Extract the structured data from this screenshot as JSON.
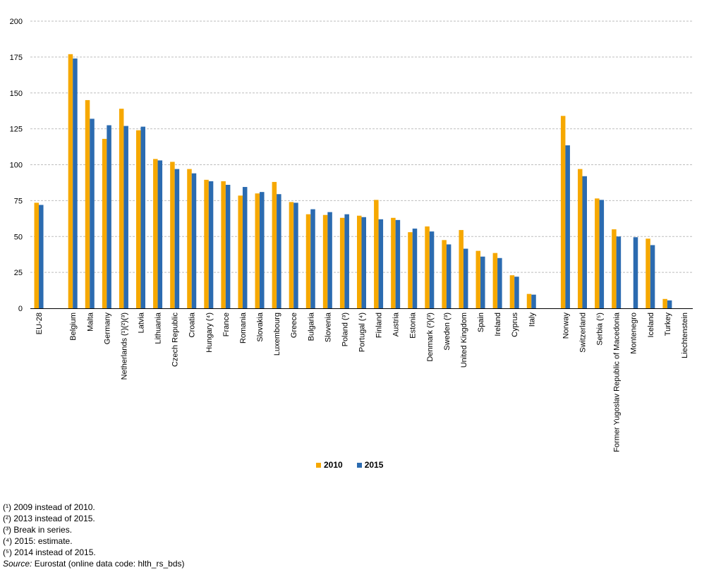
{
  "colors": {
    "series_2010": "#F6A800",
    "series_2015": "#2B6BB0",
    "grid": "#BEBEBE",
    "axis": "#000000"
  },
  "legend": {
    "label_2010": "2010",
    "label_2015": "2015"
  },
  "chart_data": {
    "type": "bar",
    "title": "",
    "xlabel": "",
    "ylabel": "",
    "ylim": [
      0,
      200
    ],
    "yticks": [
      0,
      25,
      50,
      75,
      100,
      125,
      150,
      175,
      200
    ],
    "grid": true,
    "legend_position": "bottom",
    "categories": [
      "EU-28",
      "",
      "Belgium",
      "Malta",
      "Germany",
      "Netherlands (¹)(²)(³)",
      "Latvia",
      "Lithuania",
      "Czech Republic",
      "Croatia",
      "Hungary (⁴)",
      "France",
      "Romania",
      "Slovakia",
      "Luxembourg",
      "Greece",
      "Bulgaria",
      "Slovenia",
      "Poland (³)",
      "Portugal (⁴)",
      "Finland",
      "Austria",
      "Estonia",
      "Denmark (²)(³)",
      "Sweden (³)",
      "United Kingdom",
      "Spain",
      "Ireland",
      "Cyprus",
      "Italy",
      "",
      "Norway",
      "Switzerland",
      "Serbia (⁵)",
      "Former Yugoslav Republic of Macedonia",
      "Montenegro",
      "Iceland",
      "Turkey",
      "Liechtenstein"
    ],
    "series": [
      {
        "name": "2010",
        "values": [
          73.5,
          null,
          177,
          145,
          118,
          139,
          124,
          104,
          102,
          97,
          89.5,
          88.5,
          78.5,
          80,
          88,
          74,
          65.5,
          65,
          63,
          64.5,
          75.5,
          63,
          53,
          57,
          47.5,
          54.5,
          40,
          38.5,
          23,
          10,
          null,
          134,
          97,
          76.5,
          55,
          null,
          48.5,
          6.5,
          null
        ]
      },
      {
        "name": "2015",
        "values": [
          72,
          null,
          174,
          132,
          127.5,
          127,
          126.5,
          103,
          97,
          94,
          88.5,
          86,
          84.5,
          81,
          79.5,
          73.5,
          69,
          67,
          65.5,
          63.5,
          62,
          61.5,
          55.5,
          53.5,
          44.5,
          41.5,
          36,
          35,
          22,
          9.5,
          null,
          113.5,
          92,
          75.5,
          50,
          49.5,
          44,
          5.5,
          null
        ]
      }
    ]
  },
  "notes": {
    "n1": "(¹) 2009 instead of 2010.",
    "n2": "(²) 2013 instead of 2015.",
    "n3": "(³) Break in series.",
    "n4": "(⁴) 2015: estimate.",
    "n5": "(⁵) 2014 instead of 2015.",
    "source_label": "Source:",
    "source_text": " Eurostat (online data code: hlth_rs_bds)"
  }
}
